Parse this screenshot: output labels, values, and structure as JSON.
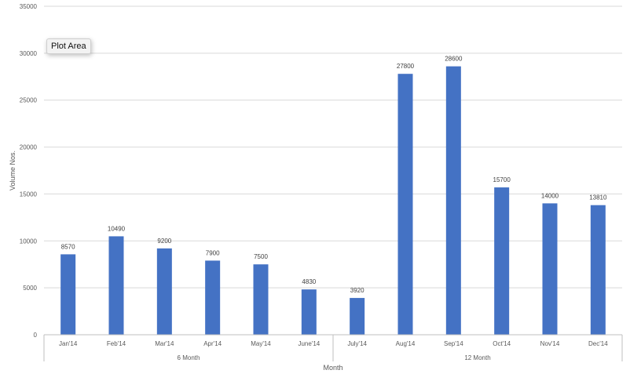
{
  "tooltip": {
    "text": "Plot Area"
  },
  "chart_data": {
    "type": "bar",
    "categories": [
      "Jan'14",
      "Feb'14",
      "Mar'14",
      "Apr'14",
      "May'14",
      "June'14",
      "July'14",
      "Aug'14",
      "Sep'14",
      "Oct'14",
      "Nov'14",
      "Dec'14"
    ],
    "groups": [
      {
        "label": "6 Month",
        "categories": [
          "Jan'14",
          "Feb'14",
          "Mar'14",
          "Apr'14",
          "May'14",
          "June'14"
        ]
      },
      {
        "label": "12 Month",
        "categories": [
          "July'14",
          "Aug'14",
          "Sep'14",
          "Oct'14",
          "Nov'14",
          "Dec'14"
        ]
      }
    ],
    "values": [
      8570,
      10490,
      9200,
      7900,
      7500,
      4830,
      3920,
      27800,
      28600,
      15700,
      14000,
      13810
    ],
    "title": "",
    "xlabel": "Month",
    "ylabel": "Volume  Nos.",
    "ylim": [
      0,
      35000
    ],
    "yticks": [
      0,
      5000,
      10000,
      15000,
      20000,
      25000,
      30000,
      35000
    ],
    "grid": true,
    "legend": "none",
    "bar_color": "#4472c4"
  }
}
